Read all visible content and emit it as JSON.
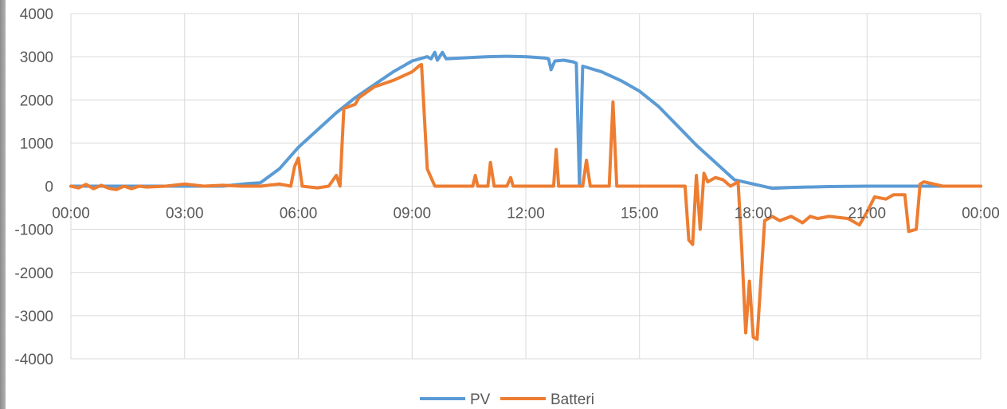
{
  "chart_data": {
    "type": "line",
    "title": "",
    "xlabel": "",
    "ylabel": "",
    "ylim": [
      -4000,
      4000
    ],
    "xlim": [
      "00:00",
      "24:00"
    ],
    "grid": true,
    "legend_position": "bottom",
    "y_ticks": [
      "4000",
      "3000",
      "2000",
      "1000",
      "0",
      "-1000",
      "-2000",
      "-3000",
      "-4000"
    ],
    "x_ticks": [
      "00:00",
      "03:00",
      "06:00",
      "09:00",
      "12:00",
      "15:00",
      "18:00",
      "21:00",
      "00:00"
    ],
    "series": [
      {
        "name": "PV",
        "color": "#5b9bd5",
        "points": [
          [
            "00:00",
            0
          ],
          [
            "04:00",
            0
          ],
          [
            "04:40",
            60
          ],
          [
            "05:00",
            80
          ],
          [
            "05:30",
            400
          ],
          [
            "06:00",
            900
          ],
          [
            "06:30",
            1300
          ],
          [
            "07:00",
            1700
          ],
          [
            "07:30",
            2050
          ],
          [
            "08:00",
            2350
          ],
          [
            "08:30",
            2650
          ],
          [
            "09:00",
            2900
          ],
          [
            "09:24",
            3000
          ],
          [
            "09:30",
            2950
          ],
          [
            "09:36",
            3100
          ],
          [
            "09:40",
            2920
          ],
          [
            "09:48",
            3100
          ],
          [
            "09:54",
            2950
          ],
          [
            "10:30",
            2980
          ],
          [
            "11:00",
            3000
          ],
          [
            "11:30",
            3010
          ],
          [
            "12:00",
            3000
          ],
          [
            "12:30",
            2970
          ],
          [
            "12:36",
            2950
          ],
          [
            "12:40",
            2700
          ],
          [
            "12:46",
            2900
          ],
          [
            "13:00",
            2920
          ],
          [
            "13:15",
            2880
          ],
          [
            "13:20",
            2850
          ],
          [
            "13:25",
            0
          ],
          [
            "13:30",
            2780
          ],
          [
            "14:00",
            2650
          ],
          [
            "14:30",
            2450
          ],
          [
            "15:00",
            2200
          ],
          [
            "15:30",
            1850
          ],
          [
            "16:00",
            1400
          ],
          [
            "16:30",
            950
          ],
          [
            "17:00",
            550
          ],
          [
            "17:30",
            150
          ],
          [
            "18:00",
            50
          ],
          [
            "18:30",
            -50
          ],
          [
            "19:00",
            -30
          ],
          [
            "20:00",
            -10
          ],
          [
            "21:00",
            0
          ],
          [
            "22:00",
            0
          ],
          [
            "23:00",
            0
          ],
          [
            "24:00",
            0
          ]
        ]
      },
      {
        "name": "Batteri",
        "color": "#ed7d31",
        "points": [
          [
            "00:00",
            0
          ],
          [
            "00:12",
            -40
          ],
          [
            "00:24",
            40
          ],
          [
            "00:36",
            -60
          ],
          [
            "00:48",
            20
          ],
          [
            "01:00",
            -50
          ],
          [
            "01:12",
            -80
          ],
          [
            "01:24",
            0
          ],
          [
            "01:36",
            -60
          ],
          [
            "01:48",
            0
          ],
          [
            "02:00",
            -20
          ],
          [
            "02:30",
            0
          ],
          [
            "03:00",
            50
          ],
          [
            "03:30",
            0
          ],
          [
            "04:00",
            20
          ],
          [
            "04:30",
            0
          ],
          [
            "05:00",
            0
          ],
          [
            "05:30",
            50
          ],
          [
            "05:48",
            0
          ],
          [
            "05:54",
            450
          ],
          [
            "06:00",
            650
          ],
          [
            "06:06",
            0
          ],
          [
            "06:30",
            -40
          ],
          [
            "06:48",
            0
          ],
          [
            "07:00",
            250
          ],
          [
            "07:06",
            0
          ],
          [
            "07:12",
            1800
          ],
          [
            "07:30",
            1900
          ],
          [
            "07:36",
            2050
          ],
          [
            "08:00",
            2300
          ],
          [
            "08:30",
            2450
          ],
          [
            "09:00",
            2650
          ],
          [
            "09:12",
            2800
          ],
          [
            "09:15",
            2820
          ],
          [
            "09:24",
            400
          ],
          [
            "09:36",
            0
          ],
          [
            "10:00",
            0
          ],
          [
            "10:36",
            0
          ],
          [
            "10:40",
            250
          ],
          [
            "10:44",
            0
          ],
          [
            "11:00",
            0
          ],
          [
            "11:04",
            550
          ],
          [
            "11:10",
            0
          ],
          [
            "11:30",
            0
          ],
          [
            "11:36",
            200
          ],
          [
            "11:40",
            0
          ],
          [
            "12:30",
            0
          ],
          [
            "12:44",
            0
          ],
          [
            "12:48",
            850
          ],
          [
            "12:52",
            0
          ],
          [
            "13:30",
            0
          ],
          [
            "13:36",
            600
          ],
          [
            "13:42",
            0
          ],
          [
            "14:12",
            0
          ],
          [
            "14:18",
            1950
          ],
          [
            "14:24",
            0
          ],
          [
            "15:30",
            0
          ],
          [
            "16:00",
            0
          ],
          [
            "16:12",
            0
          ],
          [
            "16:18",
            -1250
          ],
          [
            "16:24",
            -1350
          ],
          [
            "16:30",
            250
          ],
          [
            "16:36",
            -1000
          ],
          [
            "16:42",
            300
          ],
          [
            "16:48",
            100
          ],
          [
            "17:00",
            200
          ],
          [
            "17:12",
            150
          ],
          [
            "17:24",
            0
          ],
          [
            "17:36",
            100
          ],
          [
            "17:42",
            -1500
          ],
          [
            "17:48",
            -3400
          ],
          [
            "17:54",
            -2200
          ],
          [
            "18:00",
            -3500
          ],
          [
            "18:06",
            -3550
          ],
          [
            "18:12",
            -2200
          ],
          [
            "18:18",
            -800
          ],
          [
            "18:30",
            -700
          ],
          [
            "18:42",
            -800
          ],
          [
            "19:00",
            -700
          ],
          [
            "19:18",
            -850
          ],
          [
            "19:30",
            -700
          ],
          [
            "19:42",
            -750
          ],
          [
            "20:00",
            -700
          ],
          [
            "20:30",
            -750
          ],
          [
            "20:48",
            -900
          ],
          [
            "21:00",
            -600
          ],
          [
            "21:12",
            -250
          ],
          [
            "21:30",
            -300
          ],
          [
            "21:42",
            -200
          ],
          [
            "22:00",
            -200
          ],
          [
            "22:06",
            -1050
          ],
          [
            "22:18",
            -1000
          ],
          [
            "22:24",
            50
          ],
          [
            "22:30",
            100
          ],
          [
            "23:00",
            0
          ],
          [
            "23:30",
            0
          ],
          [
            "24:00",
            0
          ]
        ]
      }
    ]
  }
}
